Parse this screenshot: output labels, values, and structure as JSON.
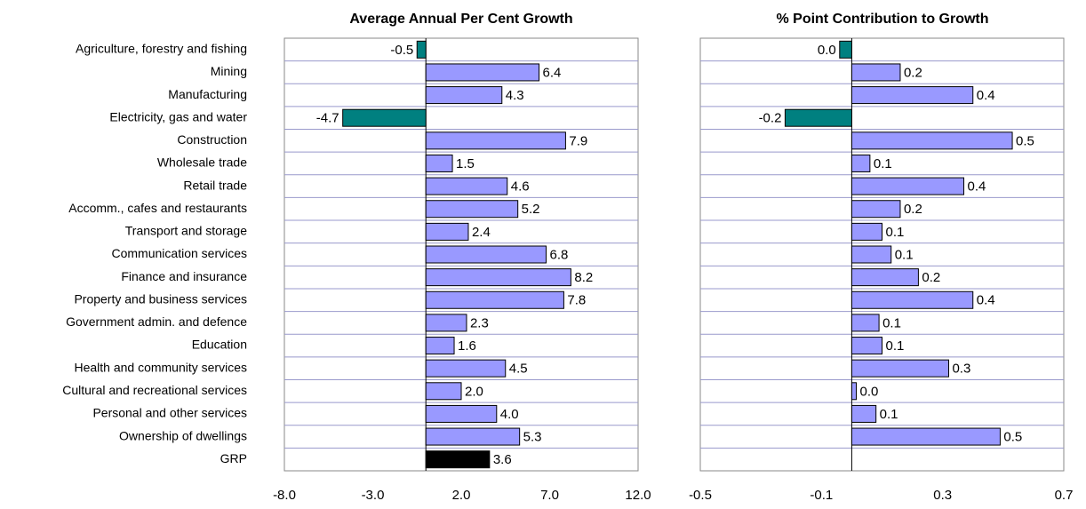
{
  "chart_data": [
    {
      "type": "bar",
      "orientation": "horizontal",
      "title": "Average Annual Per Cent Growth",
      "categories": [
        "Agriculture, forestry and fishing",
        "Mining",
        "Manufacturing",
        "Electricity, gas and water",
        "Construction",
        "Wholesale trade",
        "Retail trade",
        "Accomm., cafes and restaurants",
        "Transport and storage",
        "Communication services",
        "Finance and insurance",
        "Property and business services",
        "Government admin. and defence",
        "Education",
        "Health and community services",
        "Cultural and recreational services",
        "Personal and other services",
        "Ownership of dwellings",
        "GRP"
      ],
      "values": [
        -0.5,
        6.4,
        4.3,
        -4.7,
        7.9,
        1.5,
        4.6,
        5.2,
        2.4,
        6.8,
        8.2,
        7.8,
        2.3,
        1.6,
        4.5,
        2.0,
        4.0,
        5.3,
        3.6
      ],
      "value_labels": [
        "-0.5",
        "6.4",
        "4.3",
        "-4.7",
        "7.9",
        "1.5",
        "4.6",
        "5.2",
        "2.4",
        "6.8",
        "8.2",
        "7.8",
        "2.3",
        "1.6",
        "4.5",
        "2.0",
        "4.0",
        "5.3",
        "3.6"
      ],
      "colors": [
        "#008080",
        "#9999ff",
        "#9999ff",
        "#008080",
        "#9999ff",
        "#9999ff",
        "#9999ff",
        "#9999ff",
        "#9999ff",
        "#9999ff",
        "#9999ff",
        "#9999ff",
        "#9999ff",
        "#9999ff",
        "#9999ff",
        "#9999ff",
        "#9999ff",
        "#9999ff",
        "#000000"
      ],
      "xlim": [
        -8,
        12
      ],
      "xticks": [
        {
          "value": -8,
          "label": "-8.0"
        },
        {
          "value": -3,
          "label": "-3.0"
        },
        {
          "value": 2,
          "label": "2.0"
        },
        {
          "value": 7,
          "label": "7.0"
        },
        {
          "value": 12,
          "label": "12.0"
        }
      ],
      "grid": true
    },
    {
      "type": "bar",
      "orientation": "horizontal",
      "title": "% Point Contribution to Growth",
      "values": [
        -0.04,
        0.16,
        0.4,
        -0.22,
        0.53,
        0.06,
        0.37,
        0.16,
        0.1,
        0.13,
        0.22,
        0.4,
        0.09,
        0.1,
        0.32,
        0.015,
        0.08,
        0.49,
        null
      ],
      "value_labels": [
        "0.0",
        "0.2",
        "0.4",
        "-0.2",
        "0.5",
        "0.1",
        "0.4",
        "0.2",
        "0.1",
        "0.1",
        "0.2",
        "0.4",
        "0.1",
        "0.1",
        "0.3",
        "0.0",
        "0.1",
        "0.5",
        null
      ],
      "colors": [
        "#008080",
        "#9999ff",
        "#9999ff",
        "#008080",
        "#9999ff",
        "#9999ff",
        "#9999ff",
        "#9999ff",
        "#9999ff",
        "#9999ff",
        "#9999ff",
        "#9999ff",
        "#9999ff",
        "#9999ff",
        "#9999ff",
        "#9999ff",
        "#9999ff",
        "#9999ff",
        null
      ],
      "xlim": [
        -0.5,
        0.7
      ],
      "xticks": [
        -0.5,
        -0.1,
        0.3,
        0.7
      ],
      "grid": true
    }
  ]
}
